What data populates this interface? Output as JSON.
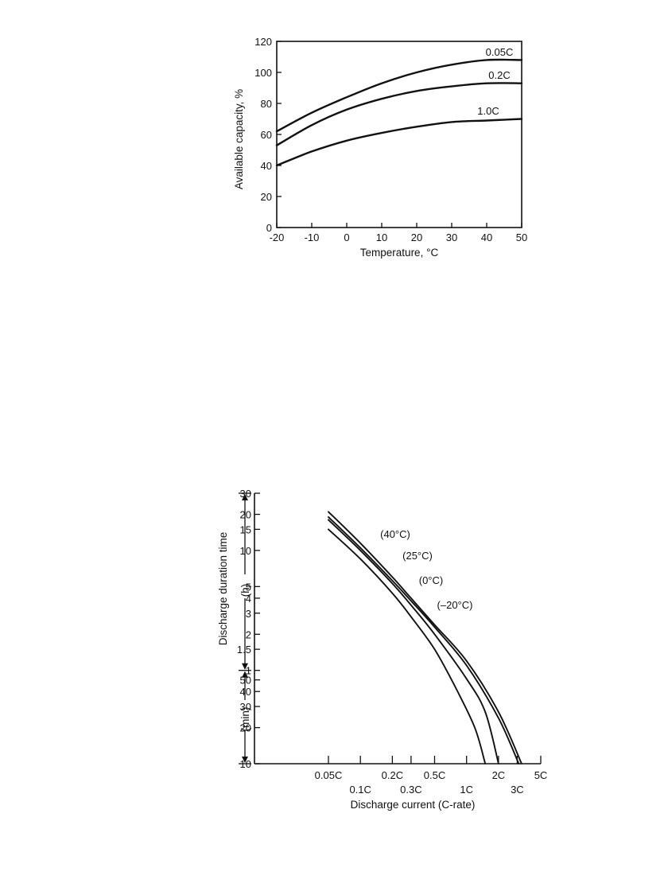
{
  "chart_data": [
    {
      "type": "line",
      "title": "",
      "xlabel": "Temperature, °C",
      "ylabel": "Available capacity, %",
      "xlim": [
        -20,
        50
      ],
      "ylim": [
        0,
        120
      ],
      "xticks": [
        "-20",
        "-10",
        "0",
        "10",
        "20",
        "30",
        "40",
        "50"
      ],
      "yticks": [
        "0",
        "20",
        "40",
        "60",
        "80",
        "100",
        "120"
      ],
      "grid": false,
      "x": [
        -20,
        -10,
        0,
        10,
        20,
        30,
        40,
        50
      ],
      "series": [
        {
          "name": "0.05C",
          "values": [
            62,
            74,
            84,
            93,
            100,
            105,
            108,
            108
          ]
        },
        {
          "name": "0.2C",
          "values": [
            53,
            66,
            76,
            83,
            88,
            91,
            93,
            93
          ]
        },
        {
          "name": "1.0C",
          "values": [
            40,
            49,
            56,
            61,
            65,
            68,
            69,
            70
          ]
        }
      ]
    },
    {
      "type": "line",
      "title": "",
      "xlabel": "Discharge current (C-rate)",
      "ylabel": "Discharge duration time",
      "ylabel_units": [
        "(h)",
        "(min)"
      ],
      "x_scale": "log",
      "y_scale": "log",
      "xticks_top_row": [
        "0.05C",
        "0.2C",
        "0.5C",
        "2C",
        "5C"
      ],
      "xticks_bottom_row": [
        "0.1C",
        "0.3C",
        "1C",
        "3C"
      ],
      "yticks_hours": [
        "30",
        "20",
        "15",
        "10",
        "5",
        "4",
        "3",
        "2",
        "1.5",
        "1"
      ],
      "yticks_minutes": [
        "50",
        "40",
        "30",
        "20",
        "10"
      ],
      "grid": false,
      "series": [
        {
          "name": "(40°C)",
          "x": [
            0.05,
            0.1,
            0.2,
            0.3,
            0.5,
            1,
            2,
            3.3
          ],
          "y_hours": [
            21,
            11.5,
            6.0,
            4.0,
            2.4,
            1.2,
            0.45,
            0.167
          ]
        },
        {
          "name": "(25°C)",
          "x": [
            0.05,
            0.1,
            0.2,
            0.3,
            0.5,
            1,
            2,
            3.1
          ],
          "y_hours": [
            19,
            10.5,
            5.6,
            3.8,
            2.3,
            1.1,
            0.4,
            0.167
          ]
        },
        {
          "name": "(0°C)",
          "x": [
            0.05,
            0.1,
            0.2,
            0.3,
            0.5,
            1,
            1.5,
            2.0
          ],
          "y_hours": [
            18,
            10.0,
            5.3,
            3.5,
            2.0,
            0.85,
            0.45,
            0.167
          ]
        },
        {
          "name": "(–20°C)",
          "x": [
            0.05,
            0.1,
            0.2,
            0.3,
            0.5,
            0.8,
            1.2,
            1.5
          ],
          "y_hours": [
            15,
            8.5,
            4.4,
            2.8,
            1.5,
            0.7,
            0.33,
            0.167
          ]
        }
      ]
    }
  ]
}
